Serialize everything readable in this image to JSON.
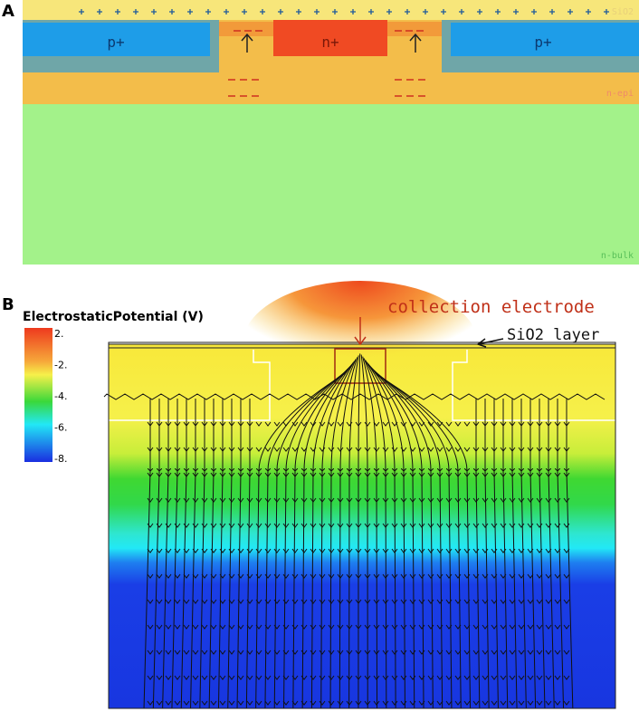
{
  "panel_a": {
    "label": "A",
    "regions": {
      "sio2": "SiO2",
      "p_left": "p+",
      "n_plus": "n+",
      "p_right": "p+",
      "n_epi": "n-epi",
      "n_bulk": "n-bulk"
    }
  },
  "panel_b": {
    "label": "B",
    "colorbar": {
      "title": "ElectrostaticPotential (V)",
      "ticks": [
        "2.",
        "-2.",
        "-4.",
        "-6.",
        "-8."
      ]
    },
    "annotations": {
      "electrode": "collection electrode",
      "oxide": "SiO2 layer"
    }
  }
}
